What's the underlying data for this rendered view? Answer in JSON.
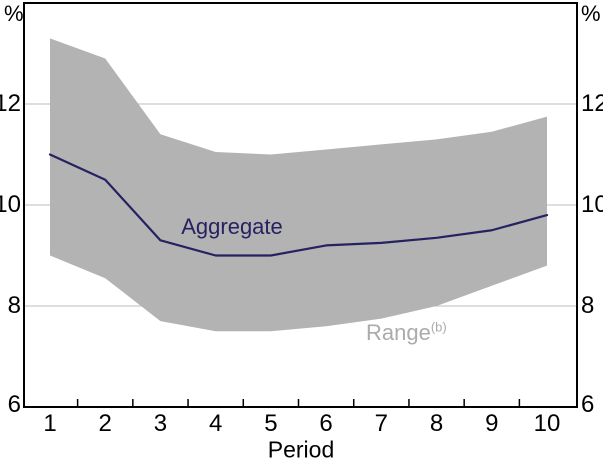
{
  "chart_data": {
    "type": "line",
    "title": "",
    "xlabel": "Period",
    "y_unit_left": "%",
    "y_unit_right": "%",
    "x": [
      1,
      2,
      3,
      4,
      5,
      6,
      7,
      8,
      9,
      10
    ],
    "x_tick_labels": [
      "1",
      "2",
      "3",
      "4",
      "5",
      "6",
      "7",
      "8",
      "9",
      "10"
    ],
    "ylim": [
      6,
      14
    ],
    "y_tick_values": [
      6,
      8,
      10,
      12
    ],
    "y_tick_labels": [
      "6",
      "8",
      "10",
      "12"
    ],
    "y_gridline_values": [
      8,
      10,
      12
    ],
    "grid": true,
    "legend_position": "in-plot annotations",
    "series": [
      {
        "name": "Aggregate",
        "type": "line",
        "label": "Aggregate",
        "color": "#262262",
        "values": [
          11.0,
          10.5,
          9.3,
          9.0,
          9.0,
          9.2,
          9.25,
          9.35,
          9.5,
          9.8
        ]
      },
      {
        "name": "Range",
        "type": "band",
        "label": "Range",
        "label_superscript": "(b)",
        "color": "#b3b3b3",
        "label_color": "#ababab",
        "upper": [
          13.3,
          12.9,
          11.4,
          11.05,
          11.0,
          11.1,
          11.2,
          11.3,
          11.45,
          11.75
        ],
        "lower": [
          9.0,
          8.55,
          7.7,
          7.5,
          7.5,
          7.6,
          7.75,
          8.0,
          8.4,
          8.8
        ]
      }
    ],
    "colors": {
      "axis": "#000000",
      "gridline": "#bdbdbd",
      "tick_text": "#000000",
      "background": "#ffffff"
    }
  }
}
